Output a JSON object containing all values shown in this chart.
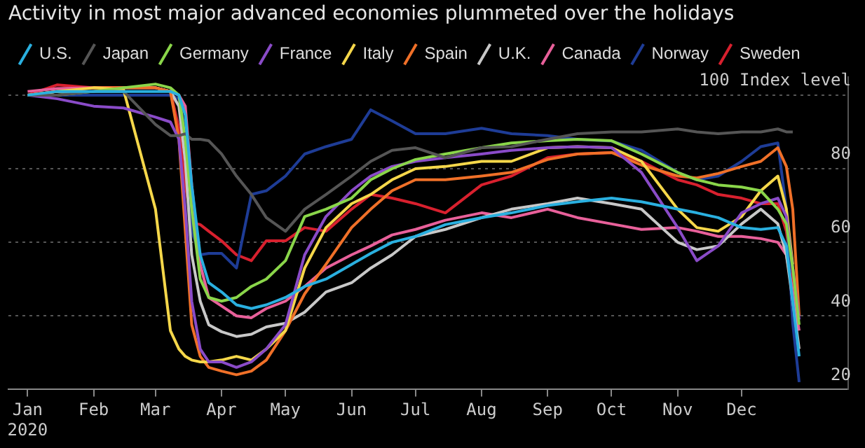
{
  "chart_data": {
    "type": "line",
    "title": "Activity in most major advanced economies plummeted over the holidays",
    "x": [
      "2020-01-01",
      "2020-01-15",
      "2020-02-01",
      "2020-02-15",
      "2020-03-01",
      "2020-03-08",
      "2020-03-12",
      "2020-03-15",
      "2020-03-18",
      "2020-03-22",
      "2020-03-26",
      "2020-04-01",
      "2020-04-08",
      "2020-04-15",
      "2020-04-22",
      "2020-05-01",
      "2020-05-10",
      "2020-05-20",
      "2020-06-01",
      "2020-06-10",
      "2020-06-20",
      "2020-07-01",
      "2020-07-15",
      "2020-08-01",
      "2020-08-15",
      "2020-09-01",
      "2020-09-15",
      "2020-10-01",
      "2020-10-15",
      "2020-11-01",
      "2020-11-10",
      "2020-11-20",
      "2020-12-01",
      "2020-12-10",
      "2020-12-18",
      "2020-12-22",
      "2020-12-25",
      "2020-12-28"
    ],
    "series": [
      {
        "name": "U.S.",
        "color": "#2ab0e0",
        "values": [
          100,
          101,
          101,
          101,
          101,
          101,
          100,
          94.6,
          75.6,
          56.6,
          49,
          46.5,
          43,
          42,
          43,
          45,
          48,
          50,
          54,
          57,
          60,
          61.6,
          64.8,
          66.7,
          68,
          70,
          71,
          72,
          71,
          69,
          68,
          66.7,
          64,
          63.5,
          64,
          59,
          44,
          29
        ]
      },
      {
        "name": "Japan",
        "color": "#555555",
        "values": [
          100,
          100,
          101,
          101,
          92,
          89,
          89,
          89.5,
          88,
          88,
          87.6,
          84,
          78,
          73,
          66.7,
          63,
          69,
          73,
          78,
          82,
          85,
          85.7,
          83,
          85.7,
          86,
          88,
          89.5,
          90,
          90,
          90.8,
          90,
          89.5,
          90,
          90,
          90.8,
          90,
          90,
          null
        ]
      },
      {
        "name": "Germany",
        "color": "#8ad64a",
        "values": [
          100,
          100,
          101,
          102,
          103,
          102,
          100,
          88,
          69,
          50,
          45,
          44,
          45,
          48,
          50,
          55,
          67,
          69,
          72,
          77,
          80,
          82.5,
          84,
          85.7,
          87,
          87.6,
          88,
          87.6,
          84,
          79,
          77,
          75.6,
          75,
          74,
          69,
          65,
          53,
          37.6
        ]
      },
      {
        "name": "France",
        "color": "#8a4bc8",
        "values": [
          100,
          99,
          97,
          96.5,
          94,
          92.7,
          88,
          69,
          44,
          31,
          27.5,
          27.5,
          26,
          27.5,
          31,
          37.6,
          56.6,
          67,
          74,
          78,
          80.6,
          82,
          83,
          84,
          85,
          85.7,
          86,
          85.7,
          79,
          64,
          55,
          59,
          68,
          70.5,
          72,
          67,
          53,
          39
        ]
      },
      {
        "name": "Italy",
        "color": "#f5d74a",
        "values": [
          100,
          101,
          102,
          101.5,
          69,
          36,
          31,
          29,
          28,
          27.5,
          27.5,
          28,
          29,
          28,
          31,
          36,
          53,
          64,
          70.5,
          73,
          77,
          80,
          80.6,
          82,
          82,
          85.7,
          86,
          85.7,
          82,
          69,
          64,
          63,
          67,
          74,
          78,
          69,
          54,
          null
        ]
      },
      {
        "name": "Spain",
        "color": "#f07028",
        "values": [
          100,
          101,
          102,
          102,
          102,
          101,
          88,
          63,
          37.6,
          29,
          26,
          25,
          24,
          25,
          28,
          36,
          46,
          54,
          64,
          69,
          74,
          77,
          77,
          78,
          79,
          82.5,
          84,
          84.4,
          81,
          78,
          77.5,
          78.7,
          80.6,
          82,
          85.7,
          80.6,
          69,
          40
        ]
      },
      {
        "name": "U.K.",
        "color": "#c8c8c8",
        "values": [
          100,
          101,
          101,
          102,
          102,
          101,
          97,
          82,
          56.6,
          44,
          37.6,
          35.7,
          34.4,
          35,
          37,
          38,
          41,
          46.5,
          49,
          53,
          56.6,
          61.6,
          63.5,
          66.7,
          69,
          70.5,
          72,
          70.5,
          69,
          60,
          58,
          59,
          65,
          69,
          65,
          56.6,
          44,
          31
        ]
      },
      {
        "name": "Canada",
        "color": "#e8609a",
        "values": [
          101,
          101.8,
          102,
          102,
          102,
          101,
          100,
          97,
          75.6,
          54,
          45,
          42.7,
          40,
          39.5,
          42,
          44,
          48,
          53,
          56.6,
          59,
          62,
          63.5,
          66,
          68,
          66.7,
          69,
          66.7,
          65,
          63.5,
          64,
          63,
          61.6,
          61.6,
          61,
          60,
          56.6,
          46.5,
          36
        ]
      },
      {
        "name": "Norway",
        "color": "#1e3c96",
        "values": [
          100,
          100,
          100,
          100,
          100,
          100,
          99,
          90,
          63,
          56.6,
          57,
          57,
          53,
          73,
          74,
          78,
          84,
          86,
          88,
          96,
          93,
          89.5,
          89.5,
          91,
          89.5,
          89,
          88,
          87.5,
          85,
          79,
          77,
          78,
          82,
          86,
          87,
          69,
          38,
          22
        ]
      },
      {
        "name": "Sweden",
        "color": "#d8202e",
        "values": [
          100,
          102.8,
          102,
          102,
          102,
          101,
          91,
          75.6,
          65.4,
          64.8,
          63,
          60.4,
          56.6,
          55,
          60.4,
          60.4,
          64,
          63,
          69,
          73,
          72,
          70.5,
          68,
          75.6,
          78,
          83,
          84,
          84.4,
          82,
          77,
          75.6,
          73,
          72,
          70.5,
          70.5,
          63,
          50,
          40
        ]
      }
    ],
    "xlim": [
      "2019-12-23",
      "2021-01-20"
    ],
    "xticks": [
      {
        "value": "2020-01-01",
        "label": "Jan\n2020"
      },
      {
        "value": "2020-02-01",
        "label": "Feb"
      },
      {
        "value": "2020-03-01",
        "label": "Mar"
      },
      {
        "value": "2020-04-01",
        "label": "Apr"
      },
      {
        "value": "2020-05-01",
        "label": "May"
      },
      {
        "value": "2020-06-01",
        "label": "Jun"
      },
      {
        "value": "2020-07-01",
        "label": "Jul"
      },
      {
        "value": "2020-08-01",
        "label": "Aug"
      },
      {
        "value": "2020-09-01",
        "label": "Sep"
      },
      {
        "value": "2020-10-01",
        "label": "Oct"
      },
      {
        "value": "2020-11-01",
        "label": "Nov"
      },
      {
        "value": "2020-12-01",
        "label": "Dec"
      }
    ],
    "ylim": [
      20,
      105
    ],
    "yticks": [
      20,
      40,
      60,
      80,
      {
        "value": 100,
        "label": "100 Index level"
      }
    ],
    "grid": "y",
    "legend": "top left",
    "marker": "none",
    "line_style": "solid"
  }
}
